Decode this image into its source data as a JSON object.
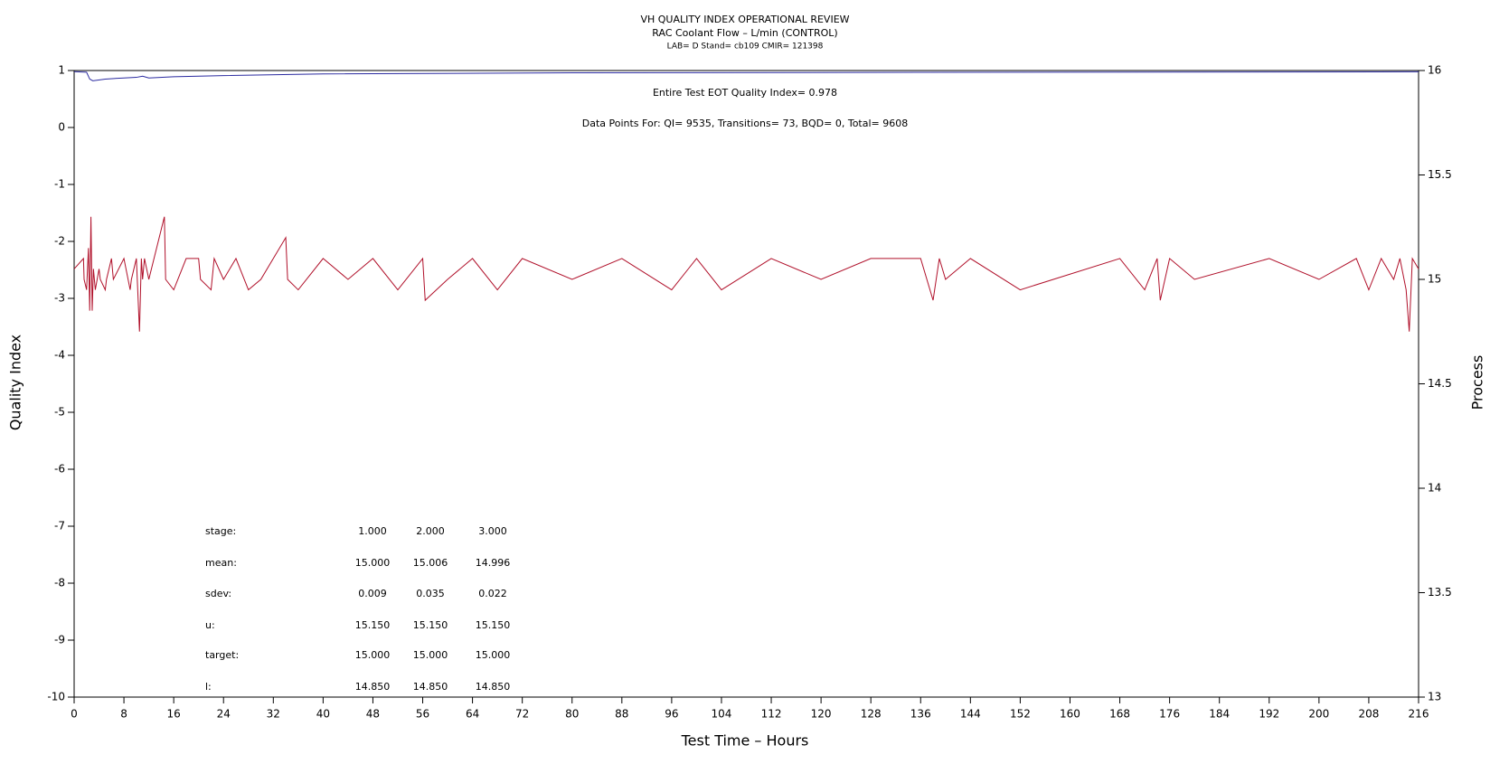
{
  "chart_data": {
    "type": "line",
    "title": "VH QUALITY INDEX OPERATIONAL REVIEW",
    "subtitle": "RAC Coolant Flow – L/min (CONTROL)",
    "subtitle2": "LAB= D Stand= cb109 CMIR= 121398",
    "xlabel": "Test Time – Hours",
    "ylabel": "Quality Index",
    "y2label": "Process",
    "annotations": [
      "Entire Test EOT Quality Index=   0.978",
      "Data Points For: QI=  9535, Transitions=    73, BQD=     0, Total=  9608"
    ],
    "stats": [
      {
        "label": "stage:",
        "values": [
          "1.000",
          "2.000",
          "3.000"
        ]
      },
      {
        "label": "mean:",
        "values": [
          "15.000",
          "15.006",
          "14.996"
        ]
      },
      {
        "label": "sdev:",
        "values": [
          "0.009",
          "0.035",
          "0.022"
        ]
      },
      {
        "label": "u:",
        "values": [
          "15.150",
          "15.150",
          "15.150"
        ]
      },
      {
        "label": "target:",
        "values": [
          "15.000",
          "15.000",
          "15.000"
        ]
      },
      {
        "label": "l:",
        "values": [
          "14.850",
          "14.850",
          "14.850"
        ]
      }
    ],
    "xlim": [
      0,
      216
    ],
    "xticks": [
      0,
      8,
      16,
      24,
      32,
      40,
      48,
      56,
      64,
      72,
      80,
      88,
      96,
      104,
      112,
      120,
      128,
      136,
      144,
      152,
      160,
      168,
      176,
      184,
      192,
      200,
      208,
      216
    ],
    "ylim": [
      -10,
      1
    ],
    "yticks": [
      -10,
      -9,
      -8,
      -7,
      -6,
      -5,
      -4,
      -3,
      -2,
      -1,
      0,
      1
    ],
    "y2lim": [
      13,
      16
    ],
    "y2ticks": [
      13,
      13.5,
      14,
      14.5,
      15,
      15.5,
      16
    ],
    "series": [
      {
        "name": "Quality Index",
        "color": "#2b2ba0",
        "x": [
          0,
          2,
          2.5,
          3,
          5,
          8,
          10,
          11,
          12,
          16,
          24,
          40,
          80,
          216
        ],
        "values": [
          0.98,
          0.97,
          0.85,
          0.82,
          0.85,
          0.87,
          0.88,
          0.9,
          0.87,
          0.89,
          0.91,
          0.94,
          0.96,
          0.978
        ]
      },
      {
        "name": "Process",
        "color": "#b0102a",
        "axis": "y2",
        "x": [
          0,
          1.5,
          1.6,
          2,
          2.3,
          2.5,
          2.7,
          2.9,
          3.1,
          3.4,
          4,
          4.2,
          5,
          5.2,
          6,
          6.3,
          8,
          9,
          9.2,
          10,
          10.5,
          10.8,
          11,
          11.3,
          12,
          14.5,
          14.7,
          16,
          18,
          20,
          20.3,
          22,
          22.5,
          24,
          26,
          28,
          30,
          32,
          34,
          34.3,
          36,
          40,
          44,
          48,
          52,
          56,
          56.4,
          60,
          64,
          68,
          72,
          80,
          88,
          96,
          100,
          104,
          112,
          120,
          128,
          136,
          138,
          139,
          140,
          144,
          152,
          168,
          172,
          174,
          174.5,
          176,
          180,
          192,
          200,
          206,
          208,
          210,
          212,
          213,
          214,
          214.5,
          215,
          216
        ],
        "values": [
          15.05,
          15.1,
          15,
          14.95,
          15.15,
          14.85,
          15.3,
          14.85,
          15.05,
          14.95,
          15.05,
          15,
          14.95,
          15,
          15.1,
          15,
          15.1,
          14.95,
          15,
          15.1,
          14.75,
          15.1,
          15,
          15.1,
          15,
          15.3,
          15,
          14.95,
          15.1,
          15.1,
          15,
          14.95,
          15.1,
          15,
          15.1,
          14.95,
          15,
          15.1,
          15.2,
          15,
          14.95,
          15.1,
          15,
          15.1,
          14.95,
          15.1,
          14.9,
          15,
          15.1,
          14.95,
          15.1,
          15,
          15.1,
          14.95,
          15.1,
          14.95,
          15.1,
          15,
          15.1,
          15.1,
          14.9,
          15.1,
          15,
          15.1,
          14.95,
          15.1,
          14.95,
          15.1,
          14.9,
          15.1,
          15,
          15.1,
          15,
          15.1,
          14.95,
          15.1,
          15,
          15.1,
          14.95,
          14.75,
          15.1,
          15.05
        ]
      }
    ]
  }
}
